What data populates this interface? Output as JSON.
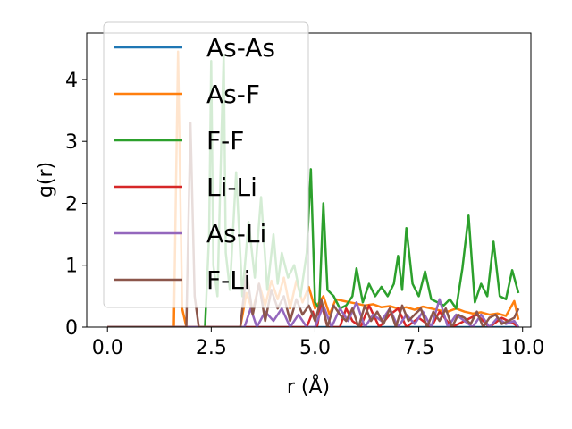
{
  "chart_data": {
    "type": "line",
    "xlabel": "r (Å)",
    "ylabel": "g(r)",
    "xlim": [
      -0.5,
      10.2
    ],
    "ylim": [
      0,
      4.75
    ],
    "xticks": [
      0.0,
      2.5,
      5.0,
      7.5,
      10.0
    ],
    "xtick_labels": [
      "0.0",
      "2.5",
      "5.0",
      "7.5",
      "10.0"
    ],
    "yticks": [
      0,
      1,
      2,
      3,
      4
    ],
    "ytick_labels": [
      "0",
      "1",
      "2",
      "3",
      "4"
    ],
    "grid": false,
    "legend_position": "upper-left",
    "series": [
      {
        "name": "As-As",
        "color": "#1f77b4",
        "x": [
          0.0,
          1.6,
          3.0,
          4.6,
          5.6,
          7.2,
          9.9
        ],
        "y": [
          0.0,
          0.0,
          0.0,
          0.0,
          0.0,
          0.0,
          0.0
        ]
      },
      {
        "name": "As-F",
        "color": "#ff7f0e",
        "x": [
          0.0,
          1.6,
          1.7,
          1.8,
          1.9,
          3.2,
          3.35,
          3.5,
          3.65,
          3.8,
          3.95,
          4.1,
          4.25,
          4.4,
          4.55,
          4.7,
          4.85,
          5.0,
          5.2,
          5.35,
          5.5,
          5.7,
          5.85,
          6.0,
          6.2,
          6.4,
          6.6,
          6.8,
          7.0,
          7.2,
          7.4,
          7.6,
          7.8,
          8.0,
          8.2,
          8.4,
          8.6,
          8.8,
          9.0,
          9.2,
          9.4,
          9.6,
          9.8,
          9.9
        ],
        "y": [
          0.0,
          0.0,
          4.45,
          0.3,
          0.0,
          0.0,
          0.55,
          0.25,
          0.7,
          0.35,
          0.75,
          0.45,
          0.8,
          0.3,
          0.75,
          0.4,
          0.65,
          0.3,
          0.5,
          0.2,
          0.45,
          0.42,
          0.4,
          0.38,
          0.35,
          0.37,
          0.32,
          0.34,
          0.3,
          0.32,
          0.28,
          0.33,
          0.3,
          0.27,
          0.25,
          0.3,
          0.25,
          0.22,
          0.24,
          0.2,
          0.22,
          0.18,
          0.42,
          0.12
        ]
      },
      {
        "name": "F-F",
        "color": "#2ca02c",
        "x": [
          0.0,
          2.35,
          2.45,
          2.5,
          2.55,
          2.65,
          2.75,
          2.8,
          2.85,
          2.95,
          3.1,
          3.25,
          3.4,
          3.55,
          3.7,
          3.85,
          4.0,
          4.1,
          4.2,
          4.35,
          4.5,
          4.65,
          4.8,
          4.9,
          5.0,
          5.1,
          5.2,
          5.3,
          5.45,
          5.6,
          5.75,
          5.9,
          6.0,
          6.15,
          6.3,
          6.45,
          6.6,
          6.75,
          6.9,
          7.0,
          7.1,
          7.2,
          7.35,
          7.5,
          7.65,
          7.8,
          7.95,
          8.1,
          8.25,
          8.4,
          8.55,
          8.7,
          8.85,
          9.0,
          9.15,
          9.3,
          9.45,
          9.6,
          9.75,
          9.9
        ],
        "y": [
          0.0,
          0.0,
          1.5,
          4.3,
          1.0,
          0.5,
          3.2,
          4.4,
          1.2,
          0.6,
          2.5,
          0.5,
          1.7,
          0.8,
          2.1,
          0.6,
          1.5,
          0.7,
          1.2,
          0.8,
          1.0,
          0.5,
          1.2,
          2.55,
          0.4,
          0.3,
          2.0,
          0.6,
          0.5,
          0.3,
          0.35,
          0.5,
          0.95,
          0.4,
          0.7,
          0.5,
          0.65,
          0.5,
          0.7,
          1.15,
          0.6,
          1.6,
          0.7,
          0.5,
          0.9,
          0.45,
          0.4,
          0.35,
          0.45,
          0.3,
          0.95,
          1.8,
          0.4,
          0.7,
          0.5,
          1.38,
          0.5,
          0.45,
          0.92,
          0.55
        ]
      },
      {
        "name": "Li-Li",
        "color": "#d62728",
        "x": [
          0.0,
          4.8,
          4.95,
          5.05,
          5.15,
          5.3,
          5.6,
          5.75,
          5.9,
          6.1,
          6.3,
          6.55,
          6.8,
          7.0,
          7.2,
          7.5,
          7.8,
          8.0,
          8.3,
          8.6,
          8.9,
          9.2,
          9.5,
          9.8,
          9.9
        ],
        "y": [
          0.0,
          0.0,
          0.25,
          0.0,
          0.4,
          0.0,
          0.0,
          0.3,
          0.1,
          0.0,
          0.35,
          0.0,
          0.2,
          0.3,
          0.0,
          0.15,
          0.0,
          0.25,
          0.0,
          0.1,
          0.2,
          0.0,
          0.15,
          0.05,
          0.0
        ]
      },
      {
        "name": "As-Li",
        "color": "#9467bd",
        "x": [
          0.0,
          3.3,
          3.45,
          3.6,
          3.8,
          4.0,
          4.2,
          4.4,
          4.6,
          4.8,
          5.0,
          5.2,
          5.4,
          5.6,
          5.8,
          6.0,
          6.2,
          6.4,
          6.6,
          6.8,
          7.0,
          7.2,
          7.4,
          7.6,
          7.8,
          8.0,
          8.2,
          8.4,
          8.6,
          8.8,
          9.0,
          9.2,
          9.4,
          9.6,
          9.8,
          9.9
        ],
        "y": [
          0.0,
          0.0,
          0.3,
          0.0,
          0.25,
          0.1,
          0.3,
          0.0,
          0.2,
          0.0,
          0.0,
          0.35,
          0.0,
          0.3,
          0.1,
          0.4,
          0.0,
          0.2,
          0.1,
          0.3,
          0.0,
          0.2,
          0.05,
          0.25,
          0.0,
          0.45,
          0.0,
          0.2,
          0.1,
          0.0,
          0.2,
          0.0,
          0.15,
          0.05,
          0.1,
          0.0
        ]
      },
      {
        "name": "F-Li",
        "color": "#8c564b",
        "x": [
          0.0,
          1.9,
          2.0,
          2.1,
          2.2,
          3.2,
          3.35,
          3.5,
          3.65,
          3.8,
          3.95,
          4.1,
          4.25,
          4.4,
          4.55,
          4.7,
          4.85,
          5.0,
          5.15,
          5.3,
          5.45,
          5.6,
          5.75,
          5.9,
          6.05,
          6.2,
          6.35,
          6.5,
          6.65,
          6.8,
          6.95,
          7.1,
          7.25,
          7.4,
          7.55,
          7.7,
          7.85,
          8.0,
          8.15,
          8.3,
          8.45,
          8.6,
          8.75,
          8.9,
          9.05,
          9.2,
          9.35,
          9.5,
          9.65,
          9.8,
          9.9
        ],
        "y": [
          0.0,
          0.0,
          3.3,
          0.5,
          0.0,
          0.0,
          0.9,
          0.2,
          0.7,
          0.1,
          0.6,
          0.3,
          0.5,
          0.1,
          0.45,
          0.2,
          0.35,
          0.1,
          0.45,
          0.0,
          0.35,
          0.2,
          0.1,
          0.3,
          0.0,
          0.35,
          0.1,
          0.25,
          0.05,
          0.3,
          0.0,
          0.35,
          0.1,
          0.2,
          0.3,
          0.0,
          0.25,
          0.1,
          0.3,
          0.0,
          0.2,
          0.15,
          0.05,
          0.25,
          0.0,
          0.15,
          0.2,
          0.05,
          0.1,
          0.15,
          0.3
        ]
      }
    ]
  }
}
